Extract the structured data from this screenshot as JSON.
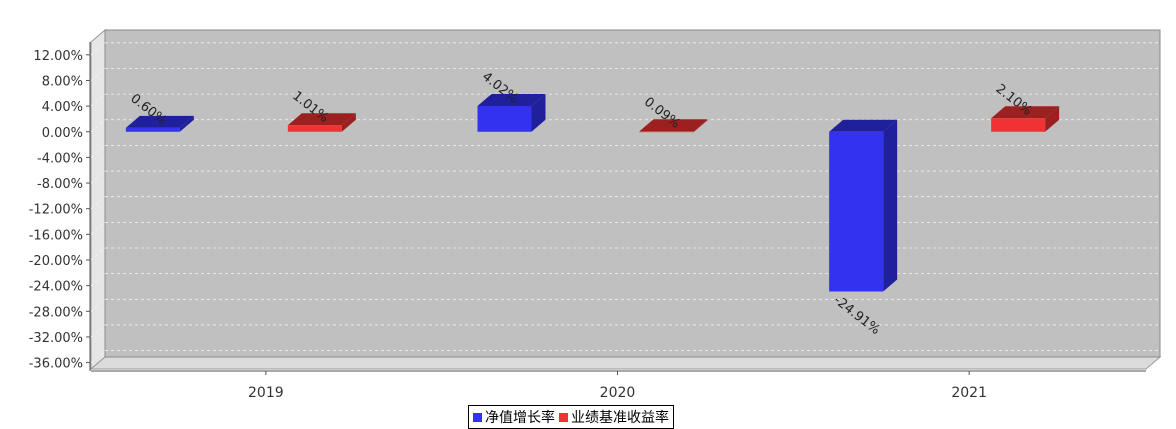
{
  "chart_data": {
    "type": "bar",
    "title": "",
    "xlabel": "",
    "ylabel": "",
    "categories": [
      "2019",
      "2020",
      "2021"
    ],
    "series": [
      {
        "name": "净值增长率",
        "values": [
          0.6,
          4.02,
          -24.91
        ],
        "labels": [
          "0.60%",
          "4.02%",
          "-24.91%"
        ],
        "color": "#3232f0"
      },
      {
        "name": "业绩基准收益率",
        "values": [
          1.01,
          0.09,
          2.1
        ],
        "labels": [
          "1.01%",
          "0.09%",
          "2.10%"
        ],
        "color": "#f03232"
      }
    ],
    "yticks": [
      "12.00%",
      "8.00%",
      "4.00%",
      "0.00%",
      "-4.00%",
      "-8.00%",
      "-12.00%",
      "-16.00%",
      "-20.00%",
      "-24.00%",
      "-28.00%",
      "-32.00%",
      "-36.00%"
    ],
    "ylim": [
      -37,
      14
    ],
    "grid": true,
    "legend_position": "bottom",
    "plot_background": "#c0c0c0"
  }
}
